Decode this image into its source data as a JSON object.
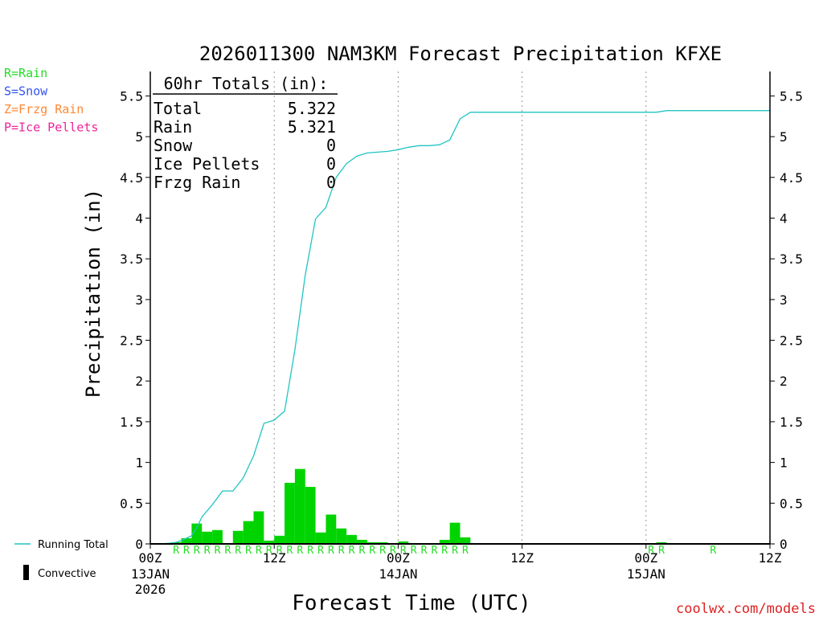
{
  "chart_data": {
    "type": "bar+line",
    "title": "2026011300 NAM3KM Forecast Precipitation KFXE",
    "xlabel": "Forecast Time (UTC)",
    "ylabel": "Precipitation (in)",
    "ylim": [
      0,
      5.8
    ],
    "yticks": [
      0,
      0.5,
      1,
      1.5,
      2,
      2.5,
      3,
      3.5,
      4,
      4.5,
      5,
      5.5
    ],
    "ytick_labels": [
      "0",
      "0.5",
      "1",
      "1.5",
      "2",
      "2.5",
      "3",
      "3.5",
      "4",
      "4.5",
      "5",
      "5.5"
    ],
    "x_unit": "forecast hour",
    "xlim": [
      0,
      60
    ],
    "xticks": [
      {
        "hour": 0,
        "line1": "00Z",
        "line2": "13JAN",
        "line3": "2026"
      },
      {
        "hour": 12,
        "line1": "12Z",
        "line2": "",
        "line3": ""
      },
      {
        "hour": 24,
        "line1": "00Z",
        "line2": "14JAN",
        "line3": ""
      },
      {
        "hour": 36,
        "line1": "12Z",
        "line2": "",
        "line3": ""
      },
      {
        "hour": 48,
        "line1": "00Z",
        "line2": "15JAN",
        "line3": ""
      },
      {
        "hour": 60,
        "line1": "12Z",
        "line2": "",
        "line3": ""
      }
    ],
    "grid": "vertical dotted at 12Z/00Z",
    "bars": {
      "name": "Hourly precipitation",
      "hours": [
        3,
        4,
        5,
        6,
        7,
        8,
        9,
        10,
        11,
        12,
        13,
        14,
        15,
        16,
        17,
        18,
        19,
        20,
        21,
        22,
        23,
        24,
        25,
        26,
        27,
        28,
        29,
        30,
        31,
        32,
        50
      ],
      "values": [
        0.02,
        0.07,
        0.25,
        0.15,
        0.17,
        0.0,
        0.16,
        0.28,
        0.4,
        0.04,
        0.1,
        0.75,
        0.92,
        0.7,
        0.14,
        0.36,
        0.19,
        0.11,
        0.05,
        0.02,
        0.02,
        0.01,
        0.03,
        0.01,
        0.01,
        0.01,
        0.05,
        0.26,
        0.08,
        0.0,
        0.02
      ]
    },
    "line": {
      "name": "Running Total",
      "hours": [
        0,
        1,
        2,
        2.5,
        3,
        3.5,
        4,
        4.5,
        5,
        6,
        7,
        8,
        9,
        10,
        11,
        12,
        13,
        14,
        15,
        16,
        17,
        18,
        19,
        20,
        21,
        22,
        23,
        24,
        25,
        26,
        27,
        28,
        29,
        30,
        31,
        32,
        33,
        34,
        35,
        36,
        37,
        38,
        39,
        40,
        41,
        42,
        43,
        44,
        45,
        46,
        47,
        48,
        49,
        50,
        51,
        52,
        53,
        54,
        55,
        56,
        57,
        58,
        59,
        60
      ],
      "values": [
        0,
        0,
        0.01,
        0.02,
        0.04,
        0.07,
        0.1,
        0.2,
        0.33,
        0.48,
        0.65,
        0.65,
        0.81,
        1.08,
        1.48,
        1.52,
        1.63,
        2.38,
        3.3,
        3.99,
        4.13,
        4.5,
        4.67,
        4.76,
        4.8,
        4.81,
        4.82,
        4.84,
        4.87,
        4.89,
        4.89,
        4.9,
        4.96,
        5.22,
        5.3,
        5.3,
        5.3,
        5.3,
        5.3,
        5.3,
        5.3,
        5.3,
        5.3,
        5.3,
        5.3,
        5.3,
        5.3,
        5.3,
        5.3,
        5.3,
        5.3,
        5.3,
        5.3,
        5.32,
        5.32,
        5.32,
        5.32,
        5.32,
        5.32,
        5.32,
        5.32,
        5.32,
        5.32,
        5.32
      ]
    },
    "precip_type_marks": {
      "letter": "R",
      "hours": [
        3,
        4,
        5,
        6,
        7,
        8,
        9,
        10,
        11,
        12,
        13,
        14,
        15,
        16,
        17,
        18,
        19,
        20,
        21,
        22,
        23,
        24,
        25,
        26,
        27,
        28,
        29,
        30,
        31,
        49,
        50,
        55
      ]
    },
    "totals_box": {
      "header": "60hr Totals (in):",
      "rows": [
        {
          "label": "Total",
          "value": "5.322"
        },
        {
          "label": "Rain",
          "value": "5.321"
        },
        {
          "label": "Snow",
          "value": "0"
        },
        {
          "label": "Ice Pellets",
          "value": "0"
        },
        {
          "label": "Frzg Rain",
          "value": "0"
        }
      ]
    },
    "type_legend": [
      {
        "label": "R=Rain",
        "color": "#22dd22"
      },
      {
        "label": "S=Snow",
        "color": "#3355ee"
      },
      {
        "label": "Z=Frzg Rain",
        "color": "#ff8833"
      },
      {
        "label": "P=Ice Pellets",
        "color": "#ee2299"
      }
    ],
    "series_legend": [
      {
        "label": "Running Total",
        "color": "#22c4c4",
        "symbol": "line"
      },
      {
        "label": "Convective",
        "color": "#000000",
        "symbol": "bar"
      }
    ],
    "colors": {
      "bar": "#00d400",
      "line": "#22c4c4",
      "rain_mark": "#22dd22"
    },
    "credit": "coolwx.com/models",
    "credit_color": "#dd2222"
  }
}
